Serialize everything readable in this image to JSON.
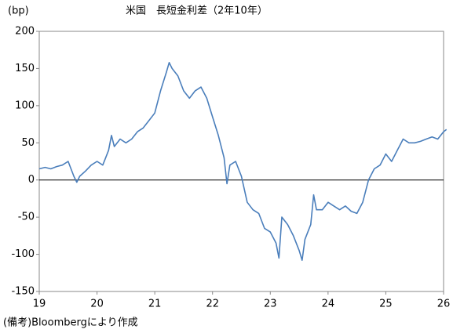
{
  "chart_data": {
    "type": "line",
    "title": "米国　長短金利差（2年10年）",
    "y_unit": "(bp)",
    "note": "(備考)Bloombergにより作成",
    "x": [
      19.0,
      19.1,
      19.2,
      19.3,
      19.4,
      19.5,
      19.6,
      19.65,
      19.7,
      19.8,
      19.9,
      20.0,
      20.1,
      20.15,
      20.2,
      20.25,
      20.3,
      20.4,
      20.5,
      20.6,
      20.7,
      20.8,
      20.9,
      21.0,
      21.1,
      21.2,
      21.25,
      21.3,
      21.4,
      21.5,
      21.6,
      21.7,
      21.8,
      21.9,
      22.0,
      22.1,
      22.2,
      22.25,
      22.3,
      22.4,
      22.5,
      22.6,
      22.7,
      22.8,
      22.9,
      23.0,
      23.1,
      23.15,
      23.2,
      23.3,
      23.4,
      23.5,
      23.55,
      23.6,
      23.7,
      23.75,
      23.8,
      23.9,
      24.0,
      24.1,
      24.2,
      24.3,
      24.4,
      24.5,
      24.6,
      24.7,
      24.8,
      24.9,
      25.0,
      25.1,
      25.2,
      25.3,
      25.4,
      25.5,
      25.6,
      25.7,
      25.8,
      25.9,
      26.0,
      26.05
    ],
    "series": [
      {
        "color": "#4a7ebb",
        "values": [
          15,
          17,
          15,
          18,
          20,
          25,
          5,
          -3,
          5,
          12,
          20,
          25,
          20,
          30,
          40,
          60,
          45,
          55,
          50,
          55,
          65,
          70,
          80,
          90,
          120,
          145,
          158,
          150,
          140,
          120,
          110,
          120,
          125,
          110,
          85,
          60,
          30,
          -5,
          20,
          25,
          5,
          -30,
          -40,
          -45,
          -65,
          -70,
          -85,
          -105,
          -50,
          -60,
          -75,
          -95,
          -108,
          -80,
          -60,
          -20,
          -40,
          -40,
          -30,
          -35,
          -40,
          -35,
          -42,
          -45,
          -30,
          0,
          15,
          20,
          35,
          25,
          40,
          55,
          50,
          50,
          52,
          55,
          58,
          55,
          65,
          68
        ]
      }
    ],
    "xlim": [
      19,
      26
    ],
    "xticks": [
      19,
      20,
      21,
      22,
      23,
      24,
      25,
      26
    ],
    "ylim": [
      -150,
      200
    ],
    "yticks": [
      -150,
      -100,
      -50,
      0,
      50,
      100,
      150,
      200
    ]
  }
}
